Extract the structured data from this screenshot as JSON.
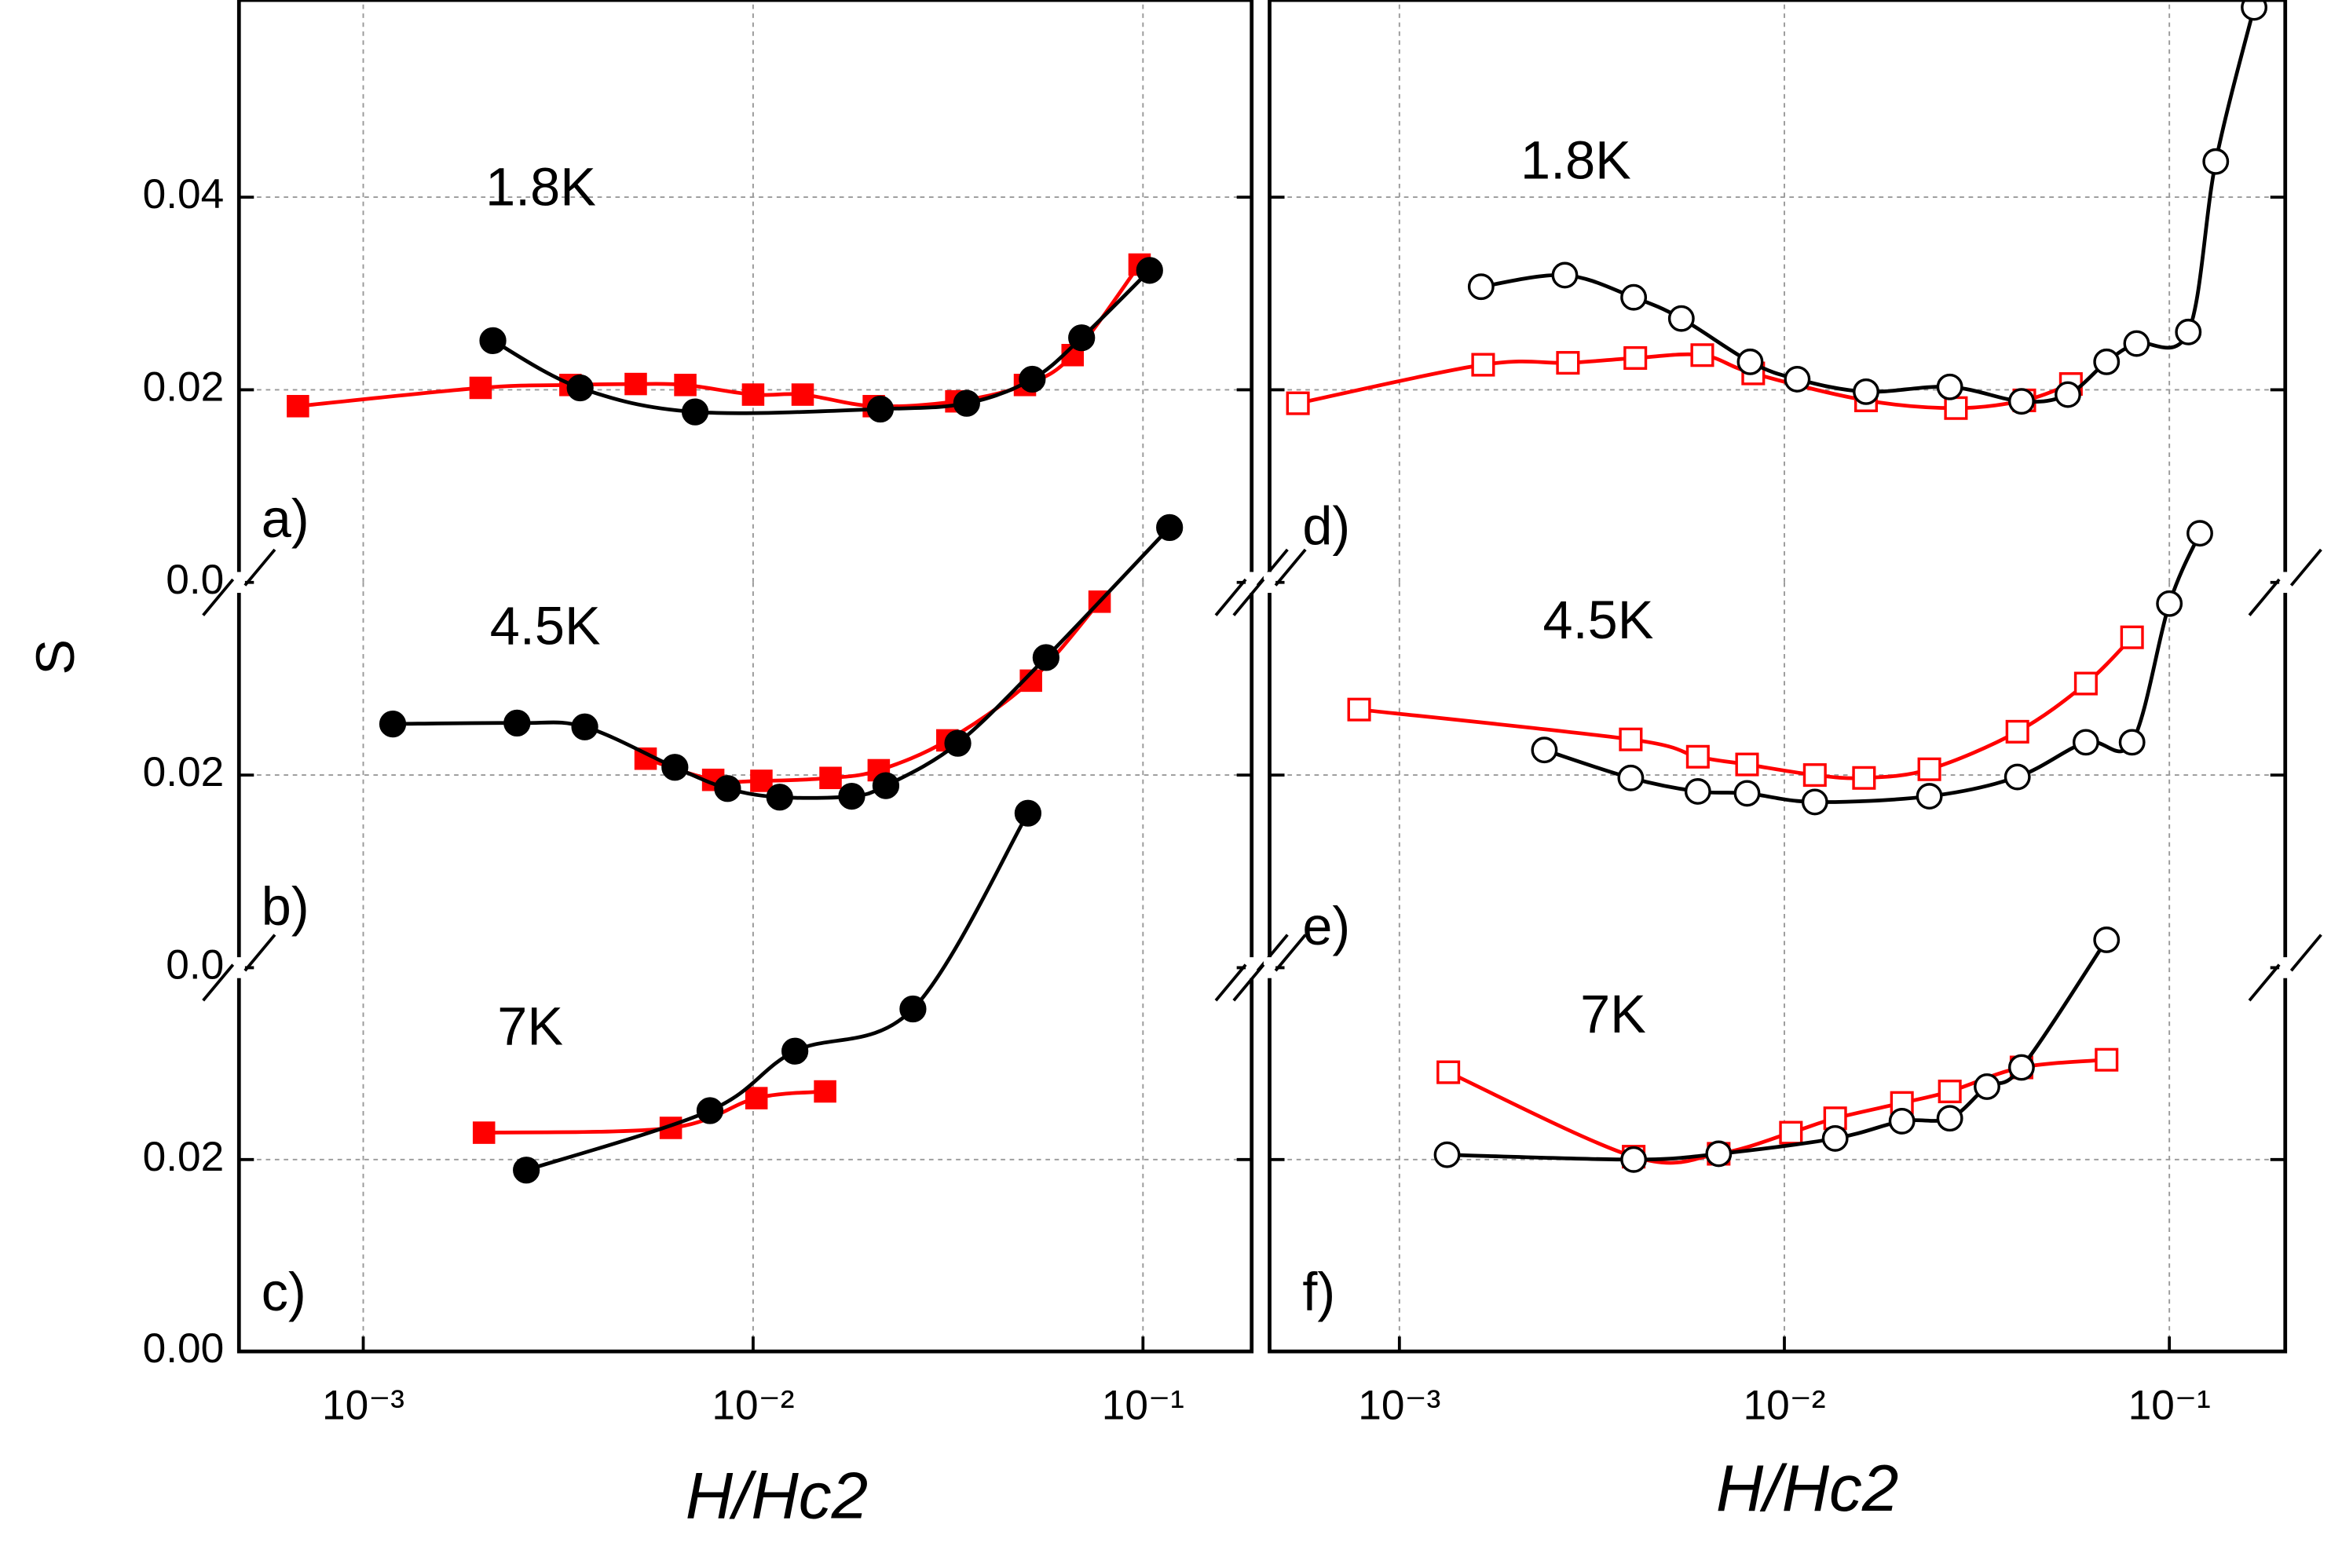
{
  "chart_data": [
    {
      "type": "line",
      "annotation": "1.8K",
      "panel_label": "a)",
      "ylabel": "S",
      "xlim": [
        0.00048,
        0.19
      ],
      "ylim": [
        0,
        0.06
      ],
      "yticks": [
        {
          "value": 0,
          "label": "0.0"
        },
        0.02,
        0.04
      ],
      "series": [
        {
          "color": "#ff0000",
          "marker": "square",
          "filled": true,
          "x": [
            0.00068,
            0.002,
            0.0034,
            0.005,
            0.0067,
            0.01,
            0.0134,
            0.0204,
            0.0332,
            0.0498,
            0.066,
            0.098
          ],
          "values": [
            0.0183,
            0.0202,
            0.0205,
            0.0206,
            0.0205,
            0.0195,
            0.0195,
            0.0183,
            0.0188,
            0.0205,
            0.0236,
            0.033
          ]
        },
        {
          "color": "#000000",
          "marker": "circle",
          "filled": true,
          "x": [
            0.00215,
            0.0036,
            0.0071,
            0.0212,
            0.0353,
            0.052,
            0.0696,
            0.104
          ],
          "values": [
            0.0251,
            0.0202,
            0.0177,
            0.018,
            0.0186,
            0.0211,
            0.0254,
            0.0324
          ]
        }
      ]
    },
    {
      "type": "line",
      "annotation": "4.5K",
      "panel_label": "b)",
      "xlim": [
        0.00048,
        0.19
      ],
      "ylim": [
        0,
        0.04
      ],
      "yticks": [
        {
          "value": 0,
          "label": "0.0"
        },
        0.02
      ],
      "series": [
        {
          "color": "#ff0000",
          "marker": "square",
          "filled": true,
          "x": [
            0.0053,
            0.0079,
            0.0105,
            0.0158,
            0.021,
            0.0315,
            0.0516,
            0.0774
          ],
          "values": [
            0.0217,
            0.0195,
            0.0194,
            0.0197,
            0.0205,
            0.0236,
            0.0298,
            0.038
          ]
        },
        {
          "color": "#000000",
          "marker": "circle",
          "filled": true,
          "x": [
            0.00119,
            0.00248,
            0.0037,
            0.0063,
            0.0086,
            0.0117,
            0.0179,
            0.0219,
            0.0335,
            0.0564,
            0.117
          ],
          "values": [
            0.0253,
            0.0254,
            0.025,
            0.0208,
            0.0186,
            0.0177,
            0.0178,
            0.0189,
            0.0233,
            0.0322,
            0.0457
          ]
        }
      ]
    },
    {
      "type": "line",
      "annotation": "7K",
      "panel_label": "c)",
      "xlabel": "H/Hc2",
      "xlim": [
        0.00048,
        0.19
      ],
      "ylim": [
        0,
        0.04
      ],
      "yticks": [
        {
          "value": 0,
          "label": "0.00"
        },
        0.02
      ],
      "xticks": [
        {
          "value": 0.001,
          "label": "10⁻³"
        },
        {
          "value": 0.01,
          "label": "10⁻²"
        },
        {
          "value": 0.1,
          "label": "10⁻¹"
        }
      ],
      "series": [
        {
          "color": "#ff0000",
          "marker": "square",
          "filled": true,
          "x": [
            0.00204,
            0.00615,
            0.0102,
            0.0153
          ],
          "values": [
            0.0228,
            0.0233,
            0.0264,
            0.0271
          ]
        },
        {
          "color": "#000000",
          "marker": "circle",
          "filled": true,
          "x": [
            0.00262,
            0.00775,
            0.0128,
            0.0257,
            0.0507
          ],
          "values": [
            0.0189,
            0.0251,
            0.0313,
            0.0357,
            0.0561
          ]
        }
      ]
    },
    {
      "type": "line",
      "annotation": "1.8K",
      "panel_label": "d)",
      "xlim": [
        0.00046,
        0.2
      ],
      "ylim": [
        0,
        0.06
      ],
      "series": [
        {
          "color": "#ff0000",
          "marker": "square",
          "filled": false,
          "x": [
            0.000545,
            0.00165,
            0.00274,
            0.0041,
            0.00612,
            0.0083,
            0.0163,
            0.0279,
            0.042,
            0.0555
          ],
          "values": [
            0.0186,
            0.0226,
            0.0228,
            0.0233,
            0.0236,
            0.0217,
            0.0189,
            0.0181,
            0.0189,
            0.0206
          ]
        },
        {
          "color": "#000000",
          "marker": "circle",
          "filled": false,
          "x": [
            0.00163,
            0.00269,
            0.00406,
            0.0054,
            0.00815,
            0.0108,
            0.0163,
            0.0269,
            0.0413,
            0.0545,
            0.0687,
            0.0822,
            0.112,
            0.132,
            0.166
          ],
          "values": [
            0.0307,
            0.0319,
            0.0296,
            0.0274,
            0.0229,
            0.0211,
            0.0198,
            0.0203,
            0.0188,
            0.0195,
            0.0229,
            0.0248,
            0.026,
            0.0437,
            0.0597
          ]
        }
      ]
    },
    {
      "type": "line",
      "annotation": "4.5K",
      "panel_label": "e)",
      "xlim": [
        0.00046,
        0.2
      ],
      "ylim": [
        0,
        0.04
      ],
      "series": [
        {
          "color": "#ff0000",
          "marker": "square",
          "filled": false,
          "x": [
            0.000786,
            0.00399,
            0.00596,
            0.008,
            0.012,
            0.0161,
            0.0238,
            0.0403,
            0.0607,
            0.08
          ],
          "values": [
            0.0268,
            0.0237,
            0.0219,
            0.0211,
            0.02,
            0.0197,
            0.0206,
            0.0245,
            0.0295,
            0.0343
          ]
        },
        {
          "color": "#000000",
          "marker": "circle",
          "filled": false,
          "x": [
            0.00238,
            0.00399,
            0.00596,
            0.008,
            0.012,
            0.0238,
            0.0403,
            0.0607,
            0.08,
            0.1,
            0.12
          ],
          "values": [
            0.0226,
            0.0197,
            0.0183,
            0.0181,
            0.0172,
            0.0178,
            0.0198,
            0.0234,
            0.0234,
            0.0378,
            0.0451
          ]
        }
      ]
    },
    {
      "type": "line",
      "annotation": "7K",
      "panel_label": "f)",
      "xlabel": "H/Hc2",
      "xlim": [
        0.00046,
        0.2
      ],
      "ylim": [
        0,
        0.04
      ],
      "xticks": [
        {
          "value": 0.001,
          "label": "10⁻³"
        },
        {
          "value": 0.01,
          "label": "10⁻²"
        },
        {
          "value": 0.1,
          "label": "10⁻¹"
        }
      ],
      "series": [
        {
          "color": "#ff0000",
          "marker": "square",
          "filled": false,
          "x": [
            0.00134,
            0.00406,
            0.00675,
            0.0104,
            0.01355,
            0.0202,
            0.0269,
            0.0413,
            0.0687
          ],
          "values": [
            0.0291,
            0.0203,
            0.0206,
            0.0228,
            0.0243,
            0.0259,
            0.0271,
            0.0296,
            0.0304
          ]
        },
        {
          "color": "#000000",
          "marker": "circle",
          "filled": false,
          "x": [
            0.00133,
            0.00406,
            0.00675,
            0.01355,
            0.0202,
            0.0269,
            0.0336,
            0.0413,
            0.0687
          ],
          "values": [
            0.0205,
            0.02,
            0.0206,
            0.0222,
            0.024,
            0.0243,
            0.0276,
            0.0296,
            0.0429
          ]
        }
      ]
    }
  ]
}
